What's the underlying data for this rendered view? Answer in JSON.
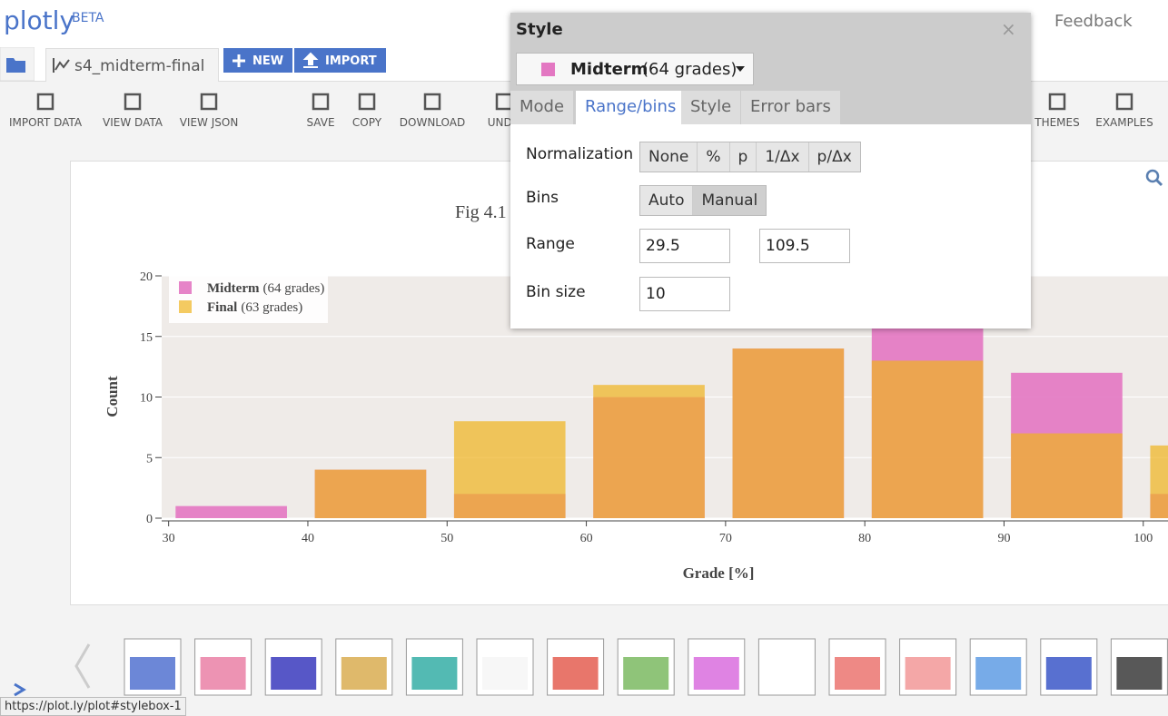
{
  "header": {
    "logo": "plotly",
    "badge": "BETA",
    "feedback": "Feedback"
  },
  "tabs": {
    "file": "s4_midterm-final",
    "new": "NEW",
    "import": "IMPORT"
  },
  "toolbar": [
    "IMPORT DATA",
    "VIEW DATA",
    "VIEW JSON",
    "SAVE",
    "COPY",
    "DOWNLOAD",
    "UNDO",
    "THEMES",
    "EXAMPLES"
  ],
  "style_panel": {
    "title": "Style",
    "close": "×",
    "trace_name": "Midterm",
    "trace_note": "(64 grades)",
    "trace_color": "#e377c2",
    "tabs": [
      "Mode",
      "Range/bins",
      "Style",
      "Error bars"
    ],
    "active_tab": 1,
    "normalization": {
      "label": "Normalization",
      "options": [
        "None",
        "%",
        "p",
        "1/Δx",
        "p/Δx"
      ]
    },
    "bins": {
      "label": "Bins",
      "options": [
        "Auto",
        "Manual"
      ],
      "selected": 1
    },
    "range": {
      "label": "Range",
      "start": "29.5",
      "end": "109.5"
    },
    "bin_size": {
      "label": "Bin size",
      "value": "10"
    }
  },
  "status_url": "https://plot.ly/plot#stylebox-1",
  "chart_data": {
    "type": "histogram",
    "title": "Fig 4.1",
    "x_label": "Grade [%]",
    "y_label": "Count",
    "bins": [
      29.5,
      39.5,
      49.5,
      59.5,
      69.5,
      79.5,
      89.5,
      99.5,
      109.5
    ],
    "series": [
      {
        "name": "Midterm",
        "note": "(64 grades)",
        "color": "#e377c2",
        "opacity": 0.9,
        "values": [
          1,
          4,
          2,
          10,
          14,
          19,
          12,
          2
        ]
      },
      {
        "name": "Final",
        "note": "(63 grades)",
        "color": "#f0b41e",
        "opacity": 0.7,
        "values": [
          0,
          4,
          8,
          11,
          14,
          13,
          7,
          6
        ]
      }
    ],
    "xlim": [
      29.5,
      110
    ],
    "xticks": [
      30,
      40,
      50,
      60,
      70,
      80,
      90,
      100
    ],
    "ylim": [
      0,
      20
    ],
    "yticks": [
      0,
      5,
      10,
      15,
      20
    ],
    "grid": true,
    "legend": "top-left"
  }
}
